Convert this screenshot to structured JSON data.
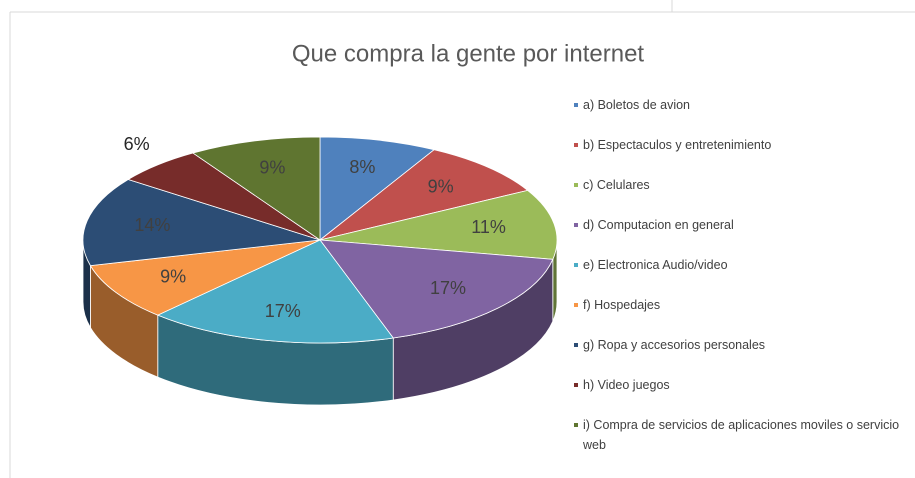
{
  "chart_data": {
    "type": "pie",
    "title": "Que compra la gente por internet",
    "categories": [
      "a) Boletos de avion",
      "b) Espectaculos y entretenimiento",
      "c) Celulares",
      "d) Computacion en general",
      "e) Electronica Audio/video",
      "f) Hospedajes",
      "g) Ropa y accesorios personales",
      "h) Video juegos",
      "i) Compra de servicios de aplicaciones moviles o servicio web"
    ],
    "values": [
      8,
      9,
      11,
      17,
      17,
      9,
      14,
      6,
      9
    ],
    "value_labels": [
      "8%",
      "9%",
      "11%",
      "17%",
      "17%",
      "9%",
      "14%",
      "6%",
      "9%"
    ],
    "colors": [
      "#4f81bd",
      "#c0504d",
      "#9bbb59",
      "#8064a2",
      "#4bacc6",
      "#f79646",
      "#2c4d75",
      "#772c2a",
      "#5f7530"
    ],
    "legend": "right"
  }
}
